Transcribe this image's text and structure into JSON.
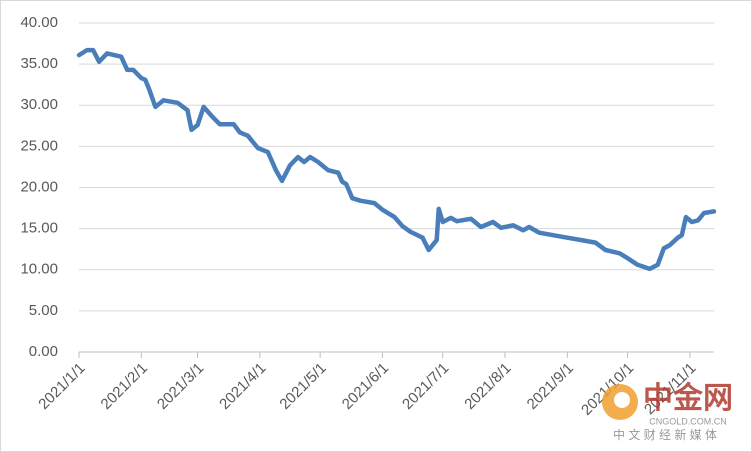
{
  "chart_data": {
    "type": "line",
    "x": [
      "2021/1/1",
      "2021/1/5",
      "2021/1/8",
      "2021/1/11",
      "2021/1/15",
      "2021/1/22",
      "2021/1/25",
      "2021/1/28",
      "2021/2/1",
      "2021/2/3",
      "2021/2/5",
      "2021/2/8",
      "2021/2/12",
      "2021/2/19",
      "2021/2/24",
      "2021/2/26",
      "2021/3/1",
      "2021/3/4",
      "2021/3/8",
      "2021/3/12",
      "2021/3/19",
      "2021/3/22",
      "2021/3/26",
      "2021/3/31",
      "2021/4/5",
      "2021/4/9",
      "2021/4/12",
      "2021/4/16",
      "2021/4/20",
      "2021/4/23",
      "2021/4/26",
      "2021/4/30",
      "2021/5/5",
      "2021/5/10",
      "2021/5/12",
      "2021/5/14",
      "2021/5/17",
      "2021/5/21",
      "2021/5/28",
      "2021/6/1",
      "2021/6/7",
      "2021/6/11",
      "2021/6/15",
      "2021/6/21",
      "2021/6/24",
      "2021/6/28",
      "2021/6/29",
      "2021/7/1",
      "2021/7/5",
      "2021/7/8",
      "2021/7/15",
      "2021/7/20",
      "2021/7/26",
      "2021/7/30",
      "2021/8/5",
      "2021/8/10",
      "2021/8/13",
      "2021/8/18",
      "2021/8/25",
      "2021/9/1",
      "2021/9/8",
      "2021/9/15",
      "2021/9/20",
      "2021/9/27",
      "2021/10/1",
      "2021/10/6",
      "2021/10/12",
      "2021/10/16",
      "2021/10/19",
      "2021/10/22",
      "2021/10/26",
      "2021/10/28",
      "2021/10/30",
      "2021/11/2",
      "2021/11/5",
      "2021/11/8",
      "2021/11/13"
    ],
    "series": [
      {
        "color": "#4a7ebb",
        "values": [
          36.1,
          36.7,
          36.7,
          35.3,
          36.3,
          35.9,
          34.3,
          34.3,
          33.3,
          33.1,
          31.9,
          29.8,
          30.6,
          30.3,
          29.4,
          27.0,
          27.6,
          29.8,
          28.7,
          27.7,
          27.7,
          26.7,
          26.3,
          24.8,
          24.3,
          22.1,
          20.8,
          22.7,
          23.7,
          23.1,
          23.7,
          23.1,
          22.1,
          21.8,
          20.7,
          20.4,
          18.7,
          18.4,
          18.1,
          17.3,
          16.4,
          15.3,
          14.6,
          13.9,
          12.4,
          13.6,
          17.4,
          15.8,
          16.3,
          15.9,
          16.2,
          15.2,
          15.8,
          15.1,
          15.4,
          14.8,
          15.2,
          14.5,
          14.2,
          13.9,
          13.6,
          13.3,
          12.4,
          12.0,
          11.4,
          10.6,
          10.1,
          10.6,
          12.6,
          13.0,
          13.9,
          14.2,
          16.4,
          15.8,
          16.0,
          16.9,
          17.1
        ]
      }
    ],
    "xlim": [
      "2021/1/1",
      "2021/11/13"
    ],
    "xticks": [
      "2021/1/1",
      "2021/2/1",
      "2021/3/1",
      "2021/4/1",
      "2021/5/1",
      "2021/6/1",
      "2021/7/1",
      "2021/8/1",
      "2021/9/1",
      "2021/10/1",
      "2021/11/1"
    ],
    "ylim": [
      0,
      40
    ],
    "yticks": [
      {
        "value": 0,
        "label": "0.00"
      },
      {
        "value": 5,
        "label": "5.00"
      },
      {
        "value": 10,
        "label": "10.00"
      },
      {
        "value": 15,
        "label": "15.00"
      },
      {
        "value": 20,
        "label": "20.00"
      },
      {
        "value": 25,
        "label": "25.00"
      },
      {
        "value": 30,
        "label": "30.00"
      },
      {
        "value": 35,
        "label": "35.00"
      },
      {
        "value": 40,
        "label": "40.00"
      }
    ],
    "grid": true
  },
  "watermark": {
    "title": "中金网",
    "url": "CNGOLD.COM.CN",
    "tagline": "中 文 财 经 新 媒 体"
  }
}
